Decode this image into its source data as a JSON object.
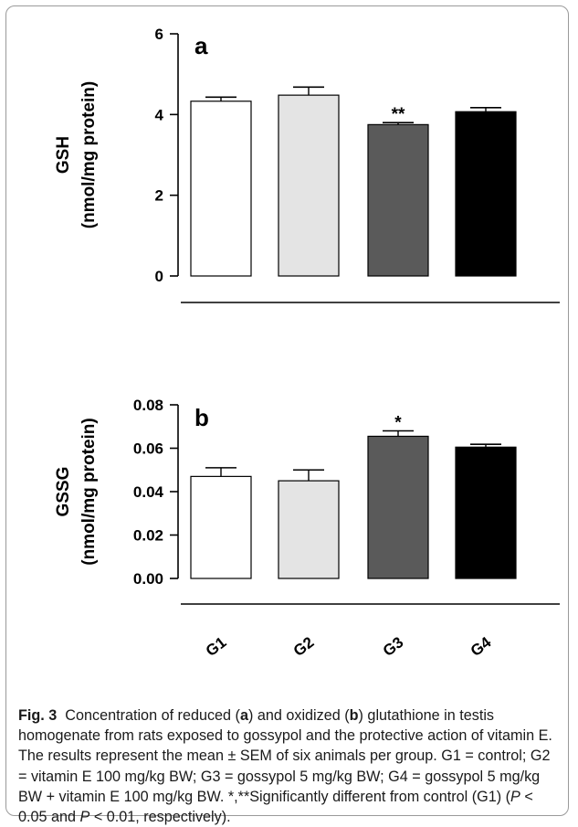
{
  "chart_data": [
    {
      "type": "bar",
      "panel_label": "a",
      "ylabel_line1": "GSH",
      "ylabel_line2": "(nmol/mg protein)",
      "categories": [
        "G1",
        "G2",
        "G3",
        "G4"
      ],
      "values": [
        4.33,
        4.48,
        3.75,
        4.07
      ],
      "errors": [
        0.1,
        0.2,
        0.05,
        0.1
      ],
      "significance": [
        "",
        "",
        "**",
        ""
      ],
      "bar_colors": [
        "#ffffff",
        "#e4e4e4",
        "#5a5a5a",
        "#000000"
      ],
      "ylim": [
        0,
        6
      ],
      "yticks": [
        "0",
        "2",
        "4",
        "6"
      ],
      "ytick_values": [
        0,
        2,
        4,
        6
      ]
    },
    {
      "type": "bar",
      "panel_label": "b",
      "ylabel_line1": "GSSG",
      "ylabel_line2": "(nmol/mg protein)",
      "categories": [
        "G1",
        "G2",
        "G3",
        "G4"
      ],
      "values": [
        0.047,
        0.045,
        0.0655,
        0.0605
      ],
      "errors": [
        0.004,
        0.005,
        0.0025,
        0.0013
      ],
      "significance": [
        "",
        "",
        "*",
        ""
      ],
      "bar_colors": [
        "#ffffff",
        "#e4e4e4",
        "#5a5a5a",
        "#000000"
      ],
      "ylim": [
        0,
        0.08
      ],
      "yticks": [
        "0.00",
        "0.02",
        "0.04",
        "0.06",
        "0.08"
      ],
      "ytick_values": [
        0,
        0.02,
        0.04,
        0.06,
        0.08
      ]
    }
  ],
  "caption": {
    "fig_label": "Fig. 3",
    "seg1": "Concentration of reduced (",
    "a": "a",
    "seg2": ") and oxidized (",
    "b": "b",
    "seg3": ") glutathione in testis homogenate from rats exposed to gossypol and the protective action of vitamin E. The results represent the mean ± SEM of six animals per group. G1 = control; G2 = vitamin E 100 mg/kg BW; G3 = gossypol 5 mg/kg BW; G4 = gossypol 5 mg/kg BW + vitamin E 100 mg/kg BW. *,**Significantly different from control (G1) (",
    "p1": "P",
    "seg4": " < 0.05 and ",
    "p2": "P",
    "seg5": " < 0.01, respectively)."
  }
}
